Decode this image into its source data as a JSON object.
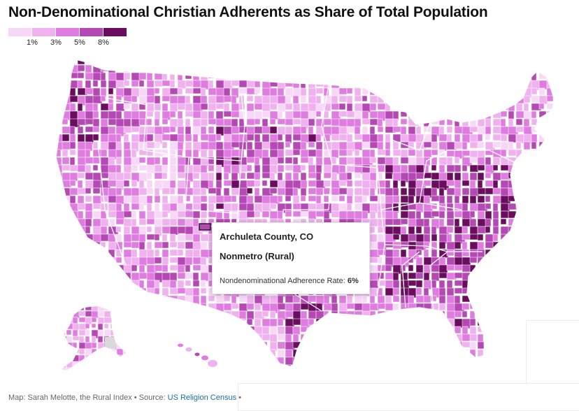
{
  "title": "Non-Denominational Christian Adherents as Share of Total Population",
  "legend": {
    "colors": [
      "#f7d9f7",
      "#efb2ef",
      "#df7cdf",
      "#b549b4",
      "#6b0d5e"
    ],
    "ticks": [
      "1%",
      "3%",
      "5%",
      "8%"
    ]
  },
  "tooltip": {
    "county": "Archuleta County, CO",
    "category": "Nonmetro (Rural)",
    "rate_label": "Nondenominational Adherence Rate: ",
    "rate_value": "6%"
  },
  "footer": {
    "credit": "Map: Sarah Melotte, the Rural Index • Source: ",
    "source_link": "US Religion Census",
    "trailing": " •"
  },
  "map_data": {
    "highlighted_county": "Archuleta County, CO",
    "nodata_color": "#d9d9d9",
    "border_color": "#ffffff"
  }
}
